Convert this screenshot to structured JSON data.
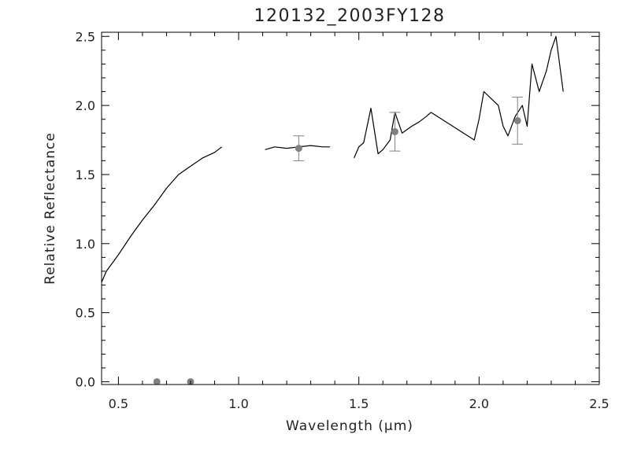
{
  "chart_data": {
    "type": "line",
    "title": "120132_2003FY128",
    "xlabel": "Wavelength (μm)",
    "ylabel": "Relative Reflectance",
    "xlim": [
      0.43,
      2.5
    ],
    "ylim": [
      -0.02,
      2.53
    ],
    "xticks": [
      0.5,
      1.0,
      1.5,
      2.0,
      2.5
    ],
    "xtick_labels": [
      "0.5",
      "1.0",
      "1.5",
      "2.0",
      "2.5"
    ],
    "yticks": [
      0.0,
      0.5,
      1.0,
      1.5,
      2.0,
      2.5
    ],
    "ytick_labels": [
      "0.0",
      "0.5",
      "1.0",
      "1.5",
      "2.0",
      "2.5"
    ],
    "grid": false,
    "series": [
      {
        "style": "line",
        "color": "#000000",
        "segments": [
          {
            "x": [
              0.43,
              0.45,
              0.5,
              0.55,
              0.6,
              0.65,
              0.7,
              0.75,
              0.8,
              0.85,
              0.9,
              0.93
            ],
            "y": [
              0.72,
              0.8,
              0.92,
              1.05,
              1.17,
              1.28,
              1.4,
              1.5,
              1.56,
              1.62,
              1.66,
              1.7
            ]
          },
          {
            "x": [
              1.11,
              1.15,
              1.2,
              1.25,
              1.3,
              1.35,
              1.38
            ],
            "y": [
              1.68,
              1.7,
              1.69,
              1.7,
              1.71,
              1.7,
              1.7
            ]
          },
          {
            "x": [
              1.48,
              1.5,
              1.52,
              1.55,
              1.58,
              1.6,
              1.63,
              1.65,
              1.68,
              1.72,
              1.75,
              1.78,
              1.8,
              1.98,
              2.0,
              2.02,
              2.05,
              2.08,
              2.1,
              2.12,
              2.15,
              2.18,
              2.2,
              2.22,
              2.25,
              2.28,
              2.3,
              2.32,
              2.35
            ],
            "y": [
              1.62,
              1.7,
              1.73,
              1.98,
              1.65,
              1.68,
              1.75,
              1.95,
              1.8,
              1.85,
              1.88,
              1.92,
              1.95,
              1.75,
              1.9,
              2.1,
              2.05,
              2.0,
              1.85,
              1.78,
              1.92,
              2.0,
              1.85,
              2.3,
              2.1,
              2.25,
              2.4,
              2.5,
              2.1
            ]
          }
        ]
      },
      {
        "style": "points",
        "color": "#808080",
        "x": [
          0.66,
          0.8,
          1.25,
          1.65,
          2.16
        ],
        "y": [
          0.0,
          0.0,
          1.69,
          1.81,
          1.89
        ],
        "yerr": [
          0,
          0,
          0.09,
          0.14,
          0.17
        ]
      }
    ]
  }
}
